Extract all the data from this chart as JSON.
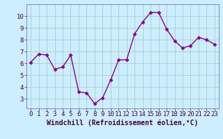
{
  "x": [
    0,
    1,
    2,
    3,
    4,
    5,
    6,
    7,
    8,
    9,
    10,
    11,
    12,
    13,
    14,
    15,
    16,
    17,
    18,
    19,
    20,
    21,
    22,
    23
  ],
  "y": [
    6.1,
    6.8,
    6.7,
    5.5,
    5.7,
    6.7,
    3.6,
    3.5,
    2.6,
    3.1,
    4.6,
    6.3,
    6.3,
    8.5,
    9.5,
    10.3,
    10.3,
    8.9,
    7.9,
    7.3,
    7.5,
    8.2,
    8.0,
    7.6
  ],
  "xlabel": "Windchill (Refroidissement éolien,°C)",
  "xlim": [
    -0.5,
    23.5
  ],
  "ylim": [
    2.2,
    11.0
  ],
  "yticks": [
    3,
    4,
    5,
    6,
    7,
    8,
    9,
    10
  ],
  "xticks": [
    0,
    1,
    2,
    3,
    4,
    5,
    6,
    7,
    8,
    9,
    10,
    11,
    12,
    13,
    14,
    15,
    16,
    17,
    18,
    19,
    20,
    21,
    22,
    23
  ],
  "line_color": "#880088",
  "marker": "D",
  "marker_size": 2.5,
  "bg_color": "#cceeff",
  "grid_color": "#aacccc",
  "tick_label_fontsize": 6.5,
  "xlabel_fontsize": 7,
  "line_width": 1.0
}
